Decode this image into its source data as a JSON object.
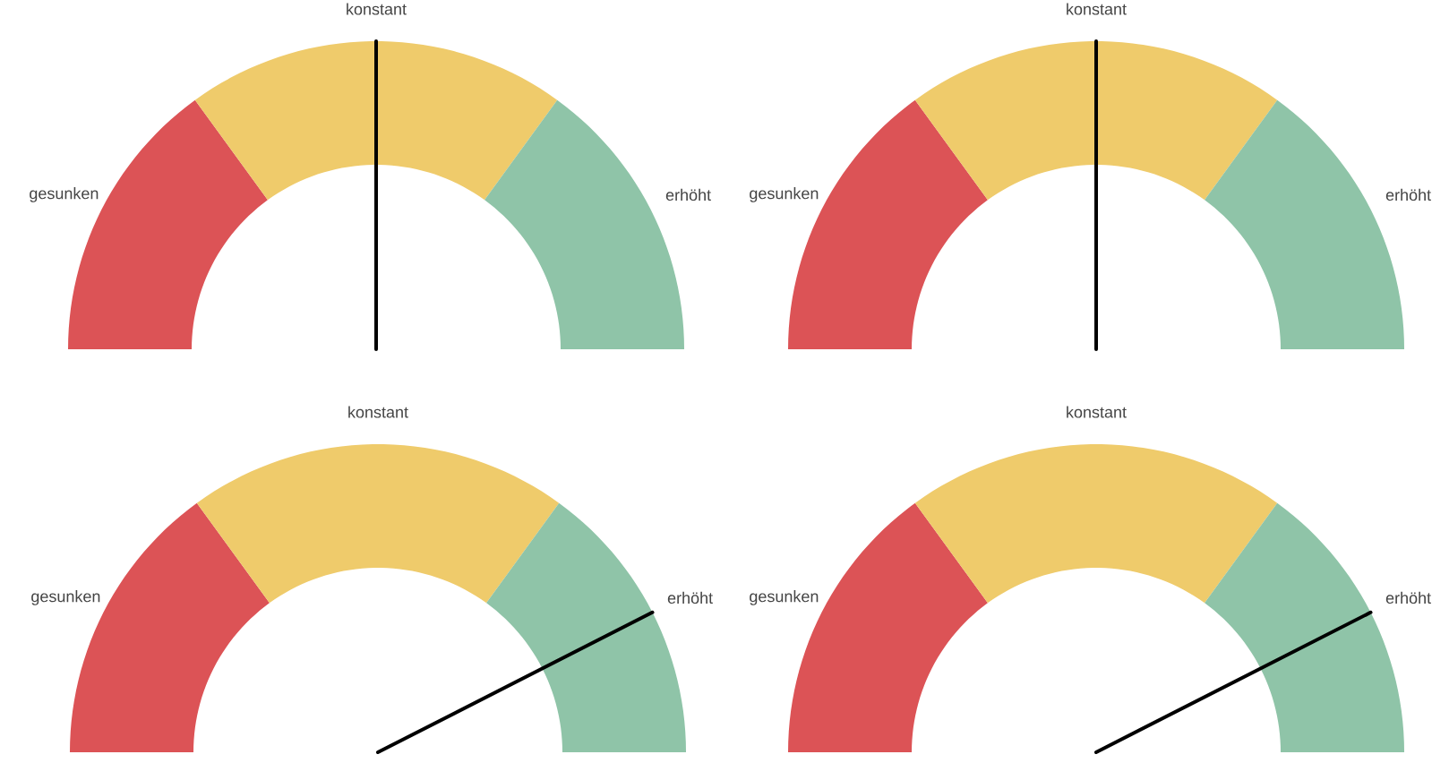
{
  "chart_data": [
    {
      "type": "donut",
      "categories": [
        "gesunken",
        "konstant",
        "erhöht"
      ],
      "values": [
        30,
        40,
        30
      ],
      "colors": [
        "#dc5356",
        "#efcb6b",
        "#8fc4a8"
      ],
      "needle": "konstant"
    },
    {
      "type": "donut",
      "categories": [
        "gesunken",
        "konstant",
        "erhöht"
      ],
      "values": [
        30,
        40,
        30
      ],
      "colors": [
        "#dc5356",
        "#efcb6b",
        "#8fc4a8"
      ],
      "needle": "konstant"
    },
    {
      "type": "donut",
      "categories": [
        "gesunken",
        "konstant",
        "erhöht"
      ],
      "values": [
        30,
        40,
        30
      ],
      "colors": [
        "#dc5356",
        "#efcb6b",
        "#8fc4a8"
      ],
      "needle": "erhöht"
    },
    {
      "type": "donut",
      "categories": [
        "gesunken",
        "konstant",
        "erhöht"
      ],
      "values": [
        30,
        40,
        30
      ],
      "colors": [
        "#dc5356",
        "#efcb6b",
        "#8fc4a8"
      ],
      "needle": "erhöht"
    }
  ]
}
